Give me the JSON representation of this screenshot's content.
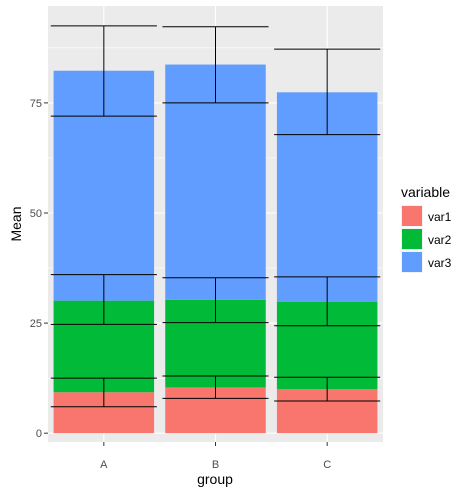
{
  "chart_data": {
    "type": "bar",
    "stacked": true,
    "error_bars": true,
    "categories": [
      "A",
      "B",
      "C"
    ],
    "xlabel": "group",
    "ylabel": "Mean",
    "ylim": [
      -2,
      97
    ],
    "yticks": [
      0,
      25,
      50,
      75
    ],
    "grid": true,
    "legend": {
      "title": "variable",
      "position": "right"
    },
    "series": [
      {
        "name": "var1",
        "color": "#F8766D",
        "values": [
          9.3,
          10.4,
          10.0
        ],
        "error_lower": [
          6.0,
          7.9,
          7.3
        ],
        "error_upper": [
          12.5,
          13.0,
          12.7
        ]
      },
      {
        "name": "var2",
        "color": "#00BA38",
        "values": [
          20.8,
          19.9,
          19.8
        ],
        "error_lower": [
          24.7,
          25.1,
          24.4
        ],
        "error_upper": [
          36.0,
          35.3,
          35.5
        ]
      },
      {
        "name": "var3",
        "color": "#619CFF",
        "values": [
          52.2,
          53.4,
          47.6
        ],
        "error_lower": [
          72.0,
          75.0,
          67.8
        ],
        "error_upper": [
          92.5,
          92.3,
          87.2
        ]
      }
    ]
  }
}
